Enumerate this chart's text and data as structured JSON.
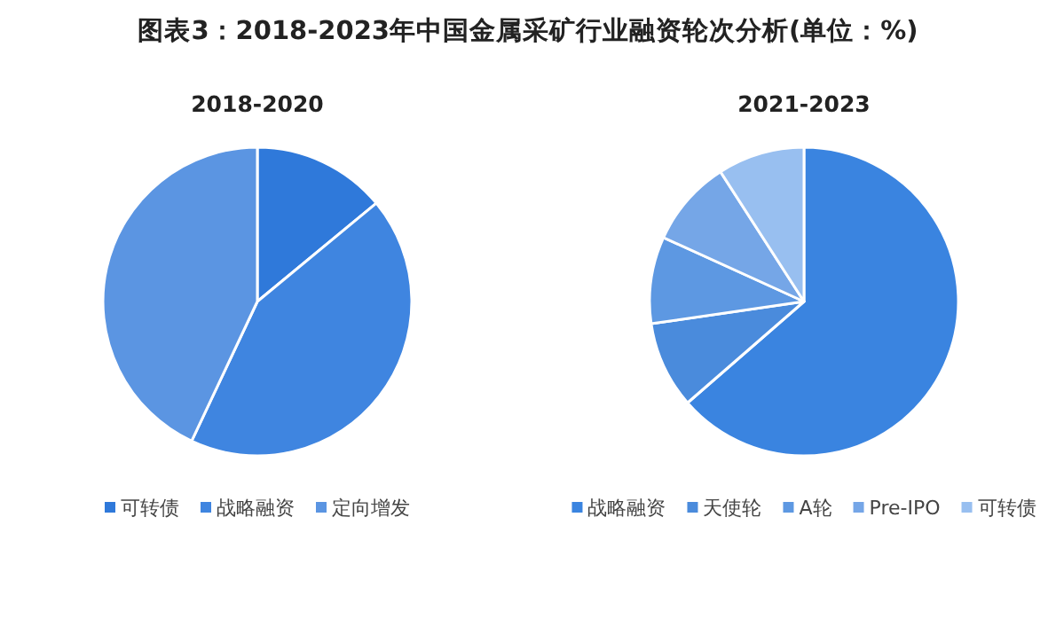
{
  "chart_data": [
    {
      "type": "pie",
      "title": "2018-2020",
      "annotations": [
        "图表3：2018-2023年中国金属采矿行业融资轮次分析(单位：%)"
      ],
      "categories": [
        "可转债",
        "战略融资",
        "定向增发"
      ],
      "values": [
        14,
        43,
        43
      ],
      "colors": [
        "#2f79da",
        "#3f85e0",
        "#5b95e2"
      ],
      "legend": "bottom"
    },
    {
      "type": "pie",
      "title": "2021-2023",
      "categories": [
        "战略融资",
        "天使轮",
        "A轮",
        "Pre-IPO",
        "可转债"
      ],
      "values": [
        63.6,
        9.1,
        9.1,
        9.1,
        9.1
      ],
      "colors": [
        "#3a84e0",
        "#4a8bdc",
        "#5d98e2",
        "#75a6e7",
        "#98bff0"
      ],
      "legend": "bottom"
    }
  ]
}
